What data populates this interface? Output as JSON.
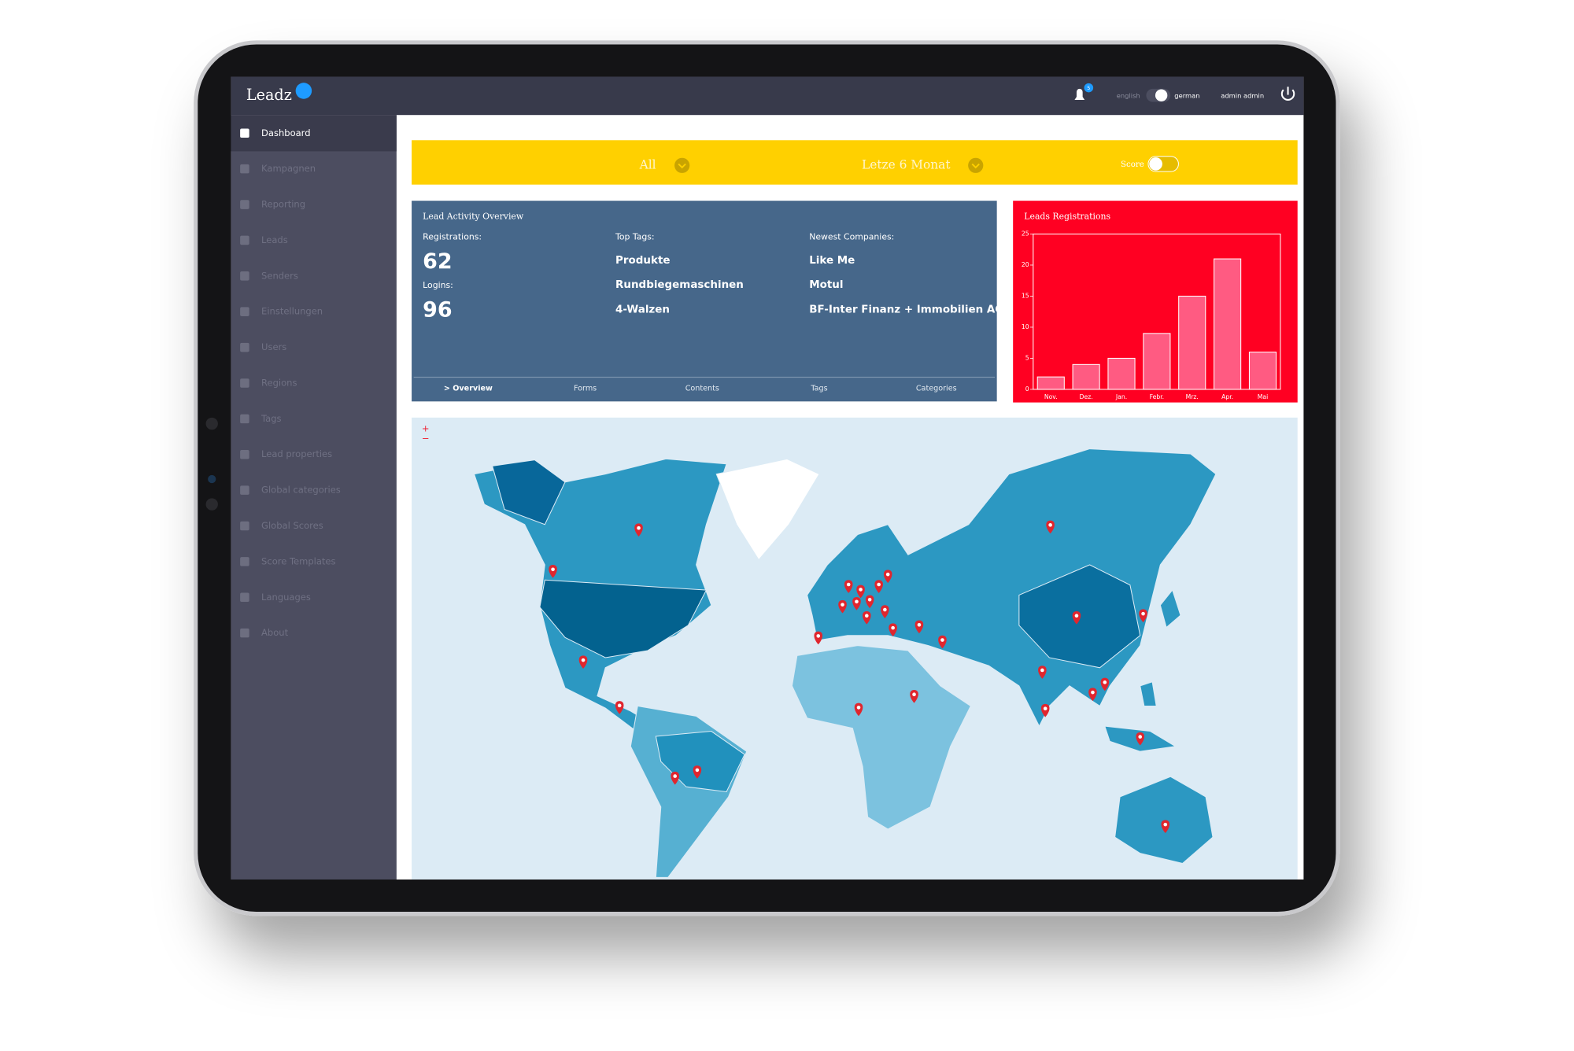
{
  "topbar": {
    "brand": "Leadz",
    "notifications": "5",
    "language_left": "english",
    "language_right": "german",
    "user": "admin admin"
  },
  "sidebar": {
    "items": [
      "Dashboard",
      "Kampagnen",
      "Reporting",
      "Leads",
      "Senders",
      "Einstellungen",
      "Users",
      "Regions",
      "Tags",
      "Lead properties",
      "Global categories",
      "Global Scores",
      "Score Templates",
      "Languages",
      "About"
    ]
  },
  "filters": {
    "type": "All",
    "period": "Letze 6 Monat",
    "score": "Score"
  },
  "activity": {
    "title": "Lead Activity Overview",
    "registrations_label": "Registrations:",
    "registrations": 62,
    "logins_label": "Logins:",
    "logins": 96,
    "top_tags_label": "Top Tags:",
    "top_tags": [
      "Produkte",
      "Rundbiegemaschinen",
      "4-Walzen"
    ],
    "companies_label": "Newest Companies:",
    "companies": [
      "Like Me",
      "Motul",
      "BF-Inter Finanz + Immobilien AG"
    ],
    "tabs": [
      "> Overview",
      "Forms",
      "Contents",
      "Tags",
      "Categories"
    ]
  },
  "registrations_chart": {
    "type": "bar",
    "title": "Leads Registrations",
    "categories": [
      "Nov.",
      "Dez.",
      "Jan.",
      "Febr.",
      "Mrz.",
      "Apr.",
      "Mai"
    ],
    "values": [
      2,
      4,
      5,
      9,
      15,
      21,
      6
    ],
    "ylim": [
      0,
      25
    ],
    "yticks": [
      0,
      5,
      10,
      15,
      20,
      25
    ],
    "color": "#ff5b82"
  },
  "map": {
    "zoom_in": "+",
    "zoom_out": "−"
  }
}
